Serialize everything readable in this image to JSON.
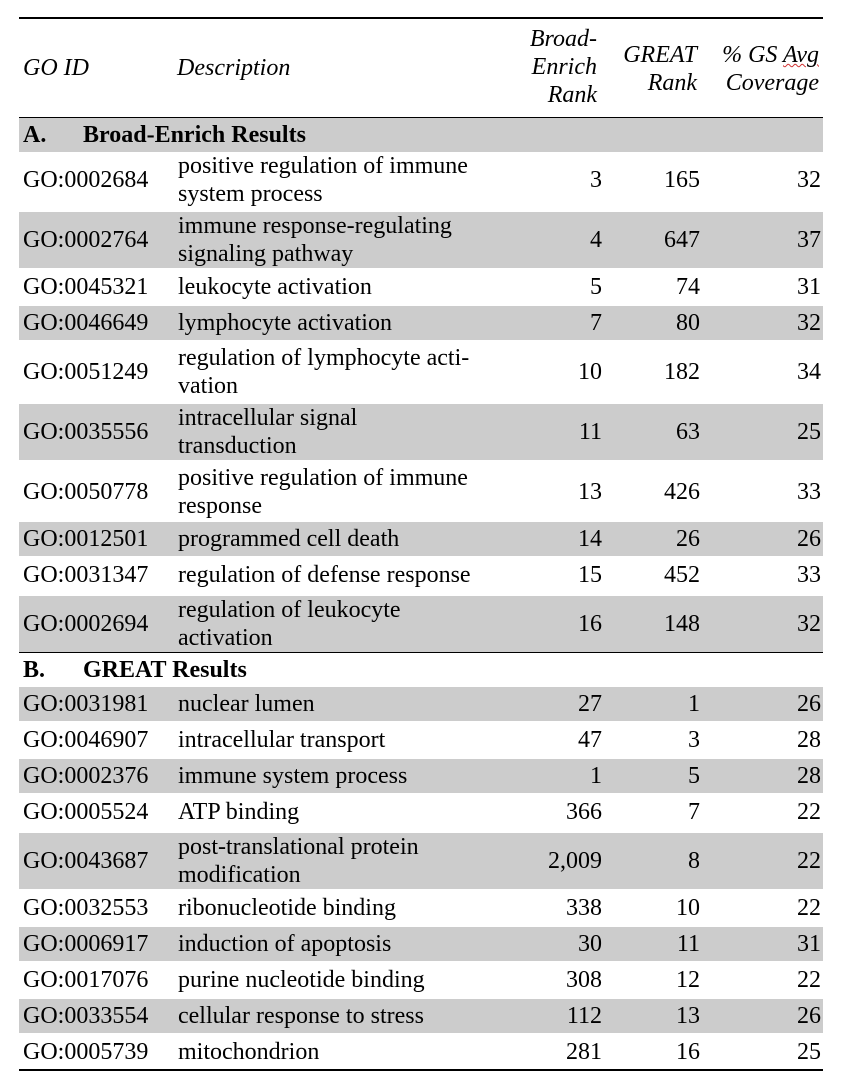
{
  "columns": {
    "go_id": "GO ID",
    "description": "Description",
    "broad_line1": "Broad-",
    "broad_line2": "Enrich",
    "broad_line3": "Rank",
    "great_line1": "GREAT",
    "great_line2": "Rank",
    "cov_line1_a": "% GS ",
    "cov_line1_b": "Avg",
    "cov_line2": "Coverage"
  },
  "sections": [
    {
      "letter": "A.",
      "title": "Broad-Enrich Results",
      "rows": [
        {
          "go_id": "GO:0002684",
          "desc": [
            "positive regulation of immune",
            "system process"
          ],
          "broad_rank": "3",
          "great_rank": "165",
          "coverage": "32"
        },
        {
          "go_id": "GO:0002764",
          "desc": [
            "immune response-regulating",
            "signaling pathway"
          ],
          "broad_rank": "4",
          "great_rank": "647",
          "coverage": "37"
        },
        {
          "go_id": "GO:0045321",
          "desc": [
            "leukocyte activation"
          ],
          "broad_rank": "5",
          "great_rank": "74",
          "coverage": "31"
        },
        {
          "go_id": "GO:0046649",
          "desc": [
            "lymphocyte activation"
          ],
          "broad_rank": "7",
          "great_rank": "80",
          "coverage": "32"
        },
        {
          "go_id": "GO:0051249",
          "desc": [
            "regulation of lymphocyte acti-",
            "vation"
          ],
          "broad_rank": "10",
          "great_rank": "182",
          "coverage": "34"
        },
        {
          "go_id": "GO:0035556",
          "desc": [
            "intracellular signal",
            "transduction"
          ],
          "broad_rank": "11",
          "great_rank": "63",
          "coverage": "25"
        },
        {
          "go_id": "GO:0050778",
          "desc": [
            "positive regulation of immune",
            "response"
          ],
          "broad_rank": "13",
          "great_rank": "426",
          "coverage": "33"
        },
        {
          "go_id": "GO:0012501",
          "desc": [
            "programmed cell death"
          ],
          "broad_rank": "14",
          "great_rank": "26",
          "coverage": "26"
        },
        {
          "go_id": "GO:0031347",
          "desc": [
            "regulation of defense response"
          ],
          "broad_rank": "15",
          "great_rank": "452",
          "coverage": "33"
        },
        {
          "go_id": "GO:0002694",
          "desc": [
            "regulation of leukocyte",
            "activation"
          ],
          "broad_rank": "16",
          "great_rank": "148",
          "coverage": "32"
        }
      ]
    },
    {
      "letter": "B.",
      "title": "GREAT Results",
      "rows": [
        {
          "go_id": "GO:0031981",
          "desc": [
            "nuclear lumen"
          ],
          "broad_rank": "27",
          "great_rank": "1",
          "coverage": "26"
        },
        {
          "go_id": "GO:0046907",
          "desc": [
            "intracellular transport"
          ],
          "broad_rank": "47",
          "great_rank": "3",
          "coverage": "28"
        },
        {
          "go_id": "GO:0002376",
          "desc": [
            "immune system process"
          ],
          "broad_rank": "1",
          "great_rank": "5",
          "coverage": "28"
        },
        {
          "go_id": "GO:0005524",
          "desc": [
            "ATP binding"
          ],
          "broad_rank": "366",
          "great_rank": "7",
          "coverage": "22"
        },
        {
          "go_id": "GO:0043687",
          "desc": [
            "post-translational protein",
            "modification"
          ],
          "broad_rank": "2,009",
          "great_rank": "8",
          "coverage": "22"
        },
        {
          "go_id": "GO:0032553",
          "desc": [
            "ribonucleotide binding"
          ],
          "broad_rank": "338",
          "great_rank": "10",
          "coverage": "22"
        },
        {
          "go_id": "GO:0006917",
          "desc": [
            "induction of apoptosis"
          ],
          "broad_rank": "30",
          "great_rank": "11",
          "coverage": "31"
        },
        {
          "go_id": "GO:0017076",
          "desc": [
            "purine nucleotide binding"
          ],
          "broad_rank": "308",
          "great_rank": "12",
          "coverage": "22"
        },
        {
          "go_id": "GO:0033554",
          "desc": [
            "cellular response to stress"
          ],
          "broad_rank": "112",
          "great_rank": "13",
          "coverage": "26"
        },
        {
          "go_id": "GO:0005739",
          "desc": [
            "mitochondrion"
          ],
          "broad_rank": "281",
          "great_rank": "16",
          "coverage": "25"
        }
      ]
    }
  ]
}
